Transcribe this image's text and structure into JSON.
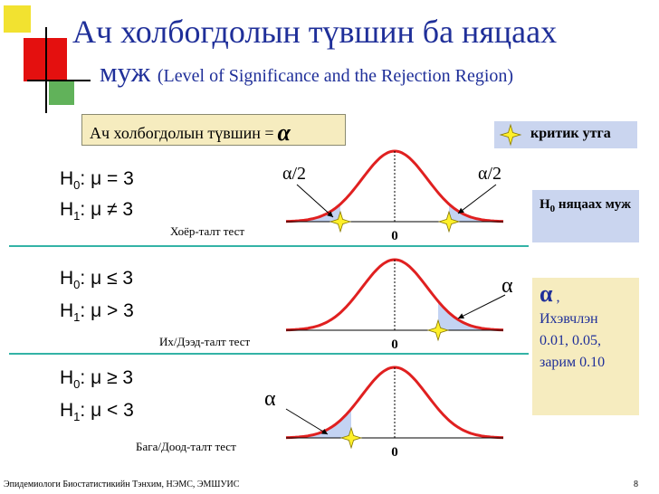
{
  "title_line1": "Ач холбогдолын түвшин ба няцаах",
  "title_line2": "муж",
  "title_subtitle": "(Level of Significance and the Rejection Region)",
  "significance_label": "Ач холбогдолын түвшин =",
  "alpha_symbol": "α",
  "critical_legend": "критик утга",
  "rejection_legend_h": "H",
  "rejection_legend_sub": "0",
  "rejection_legend_text": "няцаах муж",
  "alpha_note": {
    "symbol": "α",
    "comma": ",",
    "line1": "Ихэвчлэн",
    "line2": "0.01, 0.05,",
    "line3": "зарим 0.10"
  },
  "panels": [
    {
      "h0": ": μ = 3",
      "h1": ": μ ≠ 3",
      "test_label": "Хоёр-талт тест",
      "tail_labels": [
        "α/2",
        "α/2"
      ],
      "zero_label": "0"
    },
    {
      "h0": ": μ ≤ 3",
      "h1": ": μ > 3",
      "test_label": "Их/Дээд-талт тест",
      "tail_labels": [
        "α"
      ],
      "zero_label": "0"
    },
    {
      "h0": ": μ ≥ 3",
      "h1": ": μ < 3",
      "test_label": "Бага/Доод-талт тест",
      "tail_labels": [
        "α"
      ],
      "zero_label": "0"
    }
  ],
  "hypothesis_letter": "H",
  "sub0": "0",
  "sub1": "1",
  "footer": "Эпидемиологи Биостатистикийн Тэнхим, НЭМС, ЭМШУИС",
  "page_number": "8",
  "colors": {
    "title": "#1f2f99",
    "curve": "#e02020",
    "rejection_fill": "#c3d3f3",
    "highlight_box": "#f6ecbf",
    "legend_box": "#cad5ef",
    "divider": "#33b3a6"
  }
}
